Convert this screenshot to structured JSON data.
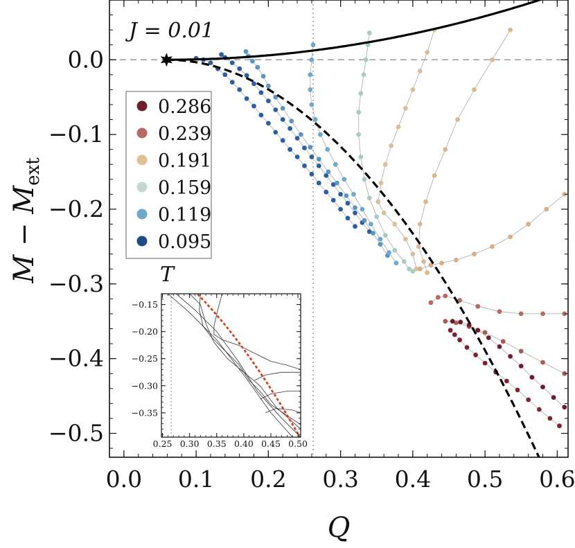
{
  "chart_data": {
    "type": "scatter",
    "title": "",
    "annotation": "J = 0.01",
    "xlabel": "Q",
    "ylabel": "M − M_ext",
    "xlim": [
      -0.02,
      0.615
    ],
    "ylim": [
      -0.532,
      0.08
    ],
    "xticks": [
      0.0,
      0.1,
      0.2,
      0.3,
      0.4,
      0.5,
      0.6
    ],
    "xtick_labels": [
      "0.0",
      "0.1",
      "0.2",
      "0.3",
      "0.4",
      "0.5",
      "0.6"
    ],
    "yticks": [
      0.0,
      -0.1,
      -0.2,
      -0.3,
      -0.4,
      -0.5
    ],
    "ytick_labels": [
      "0.0",
      "−0.1",
      "−0.2",
      "−0.3",
      "−0.4",
      "−0.5"
    ],
    "reference_lines": {
      "vertical_q": 0.262,
      "horizontal_m": 0.0
    },
    "extremal_point": {
      "q": 0.059,
      "m": 0.0
    },
    "upper_boundary": {
      "q0": 0.059,
      "coef": 0.3
    },
    "lower_boundary": {
      "q0": 0.059,
      "coef": -2.0
    },
    "legend": {
      "title": "T",
      "entries": [
        {
          "label": "0.286",
          "color": "#6e1f2c"
        },
        {
          "label": "0.239",
          "color": "#b76a62"
        },
        {
          "label": "0.191",
          "color": "#dfc195"
        },
        {
          "label": "0.159",
          "color": "#c2d9d2"
        },
        {
          "label": "0.119",
          "color": "#6ea8cc"
        },
        {
          "label": "0.095",
          "color": "#1f4a8a"
        }
      ]
    },
    "series": [
      {
        "name": "T=0.095",
        "color": "#2b5fa0",
        "points": [
          [
            0.1,
            0.002
          ],
          [
            0.11,
            0.0
          ],
          [
            0.12,
            -0.004
          ],
          [
            0.13,
            -0.012
          ],
          [
            0.14,
            -0.02
          ],
          [
            0.15,
            -0.03
          ],
          [
            0.16,
            -0.04
          ],
          [
            0.17,
            -0.052
          ],
          [
            0.18,
            -0.062
          ],
          [
            0.19,
            -0.074
          ],
          [
            0.2,
            -0.085
          ],
          [
            0.21,
            -0.097
          ],
          [
            0.22,
            -0.108
          ],
          [
            0.23,
            -0.12
          ],
          [
            0.24,
            -0.13
          ],
          [
            0.25,
            -0.142
          ],
          [
            0.26,
            -0.153
          ],
          [
            0.27,
            -0.165
          ],
          [
            0.28,
            -0.177
          ],
          [
            0.29,
            -0.188
          ],
          [
            0.3,
            -0.2
          ],
          [
            0.31,
            -0.212
          ],
          [
            0.32,
            -0.223
          ]
        ]
      },
      {
        "name": "T=0.095 (b)",
        "color": "#2b5fa0",
        "points": [
          [
            0.135,
            0.007
          ],
          [
            0.14,
            0.003
          ],
          [
            0.15,
            -0.004
          ],
          [
            0.16,
            -0.012
          ],
          [
            0.17,
            -0.021
          ],
          [
            0.18,
            -0.032
          ],
          [
            0.19,
            -0.044
          ],
          [
            0.2,
            -0.055
          ],
          [
            0.21,
            -0.067
          ],
          [
            0.22,
            -0.08
          ],
          [
            0.23,
            -0.092
          ],
          [
            0.24,
            -0.105
          ],
          [
            0.25,
            -0.118
          ],
          [
            0.26,
            -0.13
          ],
          [
            0.27,
            -0.142
          ],
          [
            0.28,
            -0.155
          ],
          [
            0.29,
            -0.167
          ],
          [
            0.3,
            -0.18
          ],
          [
            0.31,
            -0.192
          ],
          [
            0.32,
            -0.205
          ],
          [
            0.33,
            -0.218
          ],
          [
            0.34,
            -0.23
          ]
        ]
      },
      {
        "name": "T=0.119",
        "color": "#5b95c2",
        "points": [
          [
            0.169,
            0.011
          ],
          [
            0.172,
            0.005
          ],
          [
            0.178,
            -0.002
          ],
          [
            0.185,
            -0.01
          ],
          [
            0.193,
            -0.022
          ],
          [
            0.2,
            -0.035
          ],
          [
            0.21,
            -0.05
          ],
          [
            0.22,
            -0.065
          ],
          [
            0.232,
            -0.082
          ],
          [
            0.245,
            -0.1
          ],
          [
            0.258,
            -0.117
          ],
          [
            0.27,
            -0.133
          ],
          [
            0.283,
            -0.15
          ],
          [
            0.295,
            -0.165
          ],
          [
            0.308,
            -0.182
          ],
          [
            0.32,
            -0.198
          ],
          [
            0.333,
            -0.215
          ],
          [
            0.345,
            -0.232
          ],
          [
            0.355,
            -0.247
          ],
          [
            0.365,
            -0.262
          ]
        ]
      },
      {
        "name": "T=0.119 (b)",
        "color": "#6ea8cc",
        "points": [
          [
            0.262,
            0.02
          ],
          [
            0.26,
            0.0
          ],
          [
            0.258,
            -0.02
          ],
          [
            0.258,
            -0.04
          ],
          [
            0.26,
            -0.06
          ],
          [
            0.265,
            -0.08
          ],
          [
            0.272,
            -0.1
          ],
          [
            0.282,
            -0.12
          ],
          [
            0.293,
            -0.14
          ],
          [
            0.305,
            -0.16
          ],
          [
            0.318,
            -0.18
          ],
          [
            0.33,
            -0.2
          ],
          [
            0.342,
            -0.22
          ],
          [
            0.355,
            -0.24
          ],
          [
            0.367,
            -0.258
          ],
          [
            0.377,
            -0.272
          ]
        ]
      },
      {
        "name": "T=0.159",
        "color": "#a9cbc8",
        "points": [
          [
            0.34,
            0.036
          ],
          [
            0.338,
            0.02
          ],
          [
            0.335,
            0.0
          ],
          [
            0.332,
            -0.02
          ],
          [
            0.328,
            -0.045
          ],
          [
            0.325,
            -0.07
          ],
          [
            0.325,
            -0.1
          ],
          [
            0.328,
            -0.13
          ],
          [
            0.333,
            -0.16
          ],
          [
            0.34,
            -0.185
          ],
          [
            0.35,
            -0.21
          ],
          [
            0.362,
            -0.235
          ],
          [
            0.375,
            -0.255
          ],
          [
            0.388,
            -0.27
          ],
          [
            0.395,
            -0.28
          ],
          [
            0.4,
            -0.283
          ]
        ]
      },
      {
        "name": "T=0.191 (a)",
        "color": "#d7c09a",
        "points": [
          [
            0.43,
            0.04
          ],
          [
            0.42,
            0.01
          ],
          [
            0.41,
            -0.015
          ],
          [
            0.4,
            -0.04
          ],
          [
            0.39,
            -0.065
          ],
          [
            0.38,
            -0.09
          ],
          [
            0.37,
            -0.115
          ],
          [
            0.362,
            -0.14
          ],
          [
            0.356,
            -0.165
          ],
          [
            0.352,
            -0.19
          ],
          [
            0.36,
            -0.205
          ],
          [
            0.375,
            -0.22
          ],
          [
            0.39,
            -0.24
          ],
          [
            0.4,
            -0.26
          ],
          [
            0.405,
            -0.28
          ]
        ]
      },
      {
        "name": "T=0.191 (b)",
        "color": "#dcb890",
        "points": [
          [
            0.535,
            0.04
          ],
          [
            0.51,
            0.0
          ],
          [
            0.485,
            -0.04
          ],
          [
            0.462,
            -0.08
          ],
          [
            0.445,
            -0.12
          ],
          [
            0.43,
            -0.155
          ],
          [
            0.418,
            -0.19
          ],
          [
            0.41,
            -0.22
          ],
          [
            0.408,
            -0.25
          ],
          [
            0.415,
            -0.27
          ],
          [
            0.42,
            -0.285
          ]
        ]
      },
      {
        "name": "T=0.191 (c)",
        "color": "#d9ad85",
        "points": [
          [
            0.61,
            -0.18
          ],
          [
            0.585,
            -0.2
          ],
          [
            0.56,
            -0.22
          ],
          [
            0.535,
            -0.237
          ],
          [
            0.51,
            -0.25
          ],
          [
            0.485,
            -0.26
          ],
          [
            0.46,
            -0.268
          ],
          [
            0.44,
            -0.272
          ],
          [
            0.425,
            -0.275
          ],
          [
            0.41,
            -0.28
          ]
        ]
      },
      {
        "name": "T=0.239",
        "color": "#b76a62",
        "points": [
          [
            0.61,
            -0.34
          ],
          [
            0.58,
            -0.34
          ],
          [
            0.55,
            -0.34
          ],
          [
            0.52,
            -0.337
          ],
          [
            0.49,
            -0.33
          ],
          [
            0.465,
            -0.322
          ],
          [
            0.445,
            -0.316
          ],
          [
            0.435,
            -0.318
          ],
          [
            0.425,
            -0.325
          ]
        ]
      },
      {
        "name": "T=0.239 (b)",
        "color": "#a85a55",
        "points": [
          [
            0.61,
            -0.42
          ],
          [
            0.58,
            -0.405
          ],
          [
            0.55,
            -0.39
          ],
          [
            0.525,
            -0.377
          ],
          [
            0.5,
            -0.365
          ],
          [
            0.478,
            -0.357
          ],
          [
            0.46,
            -0.352
          ],
          [
            0.445,
            -0.35
          ]
        ]
      },
      {
        "name": "T=0.286",
        "color": "#7a2530",
        "points": [
          [
            0.603,
            -0.49
          ],
          [
            0.59,
            -0.48
          ],
          [
            0.575,
            -0.468
          ],
          [
            0.56,
            -0.455
          ],
          [
            0.545,
            -0.442
          ],
          [
            0.53,
            -0.43
          ],
          [
            0.515,
            -0.418
          ],
          [
            0.5,
            -0.406
          ],
          [
            0.487,
            -0.395
          ],
          [
            0.475,
            -0.385
          ],
          [
            0.465,
            -0.375
          ],
          [
            0.458,
            -0.368
          ],
          [
            0.452,
            -0.362
          ]
        ]
      },
      {
        "name": "T=0.286 (b)",
        "color": "#6e1f2c",
        "points": [
          [
            0.61,
            -0.465
          ],
          [
            0.595,
            -0.452
          ],
          [
            0.58,
            -0.438
          ],
          [
            0.565,
            -0.425
          ],
          [
            0.55,
            -0.41
          ],
          [
            0.535,
            -0.397
          ],
          [
            0.52,
            -0.384
          ],
          [
            0.505,
            -0.372
          ],
          [
            0.49,
            -0.362
          ],
          [
            0.478,
            -0.355
          ],
          [
            0.466,
            -0.351
          ],
          [
            0.455,
            -0.35
          ]
        ]
      }
    ],
    "inset": {
      "xlim": [
        0.248,
        0.505
      ],
      "ylim": [
        -0.395,
        -0.13
      ],
      "xticks": [
        0.25,
        0.3,
        0.35,
        0.4,
        0.45,
        0.5
      ],
      "xtick_labels": [
        "0.25",
        "0.30",
        "0.35",
        "0.40",
        "0.45",
        "0.50"
      ],
      "yticks": [
        -0.15,
        -0.2,
        -0.25,
        -0.3,
        -0.35
      ],
      "ytick_labels": [
        "−0.15",
        "−0.20",
        "−0.25",
        "−0.30",
        "−0.35"
      ],
      "vertical_q": 0.266,
      "boundary_color": "#d0431c",
      "curves": [
        [
          [
            0.26,
            -0.13
          ],
          [
            0.3,
            -0.165
          ],
          [
            0.35,
            -0.215
          ],
          [
            0.4,
            -0.28
          ],
          [
            0.45,
            -0.35
          ],
          [
            0.49,
            -0.395
          ]
        ],
        [
          [
            0.275,
            -0.13
          ],
          [
            0.31,
            -0.16
          ],
          [
            0.35,
            -0.2
          ],
          [
            0.39,
            -0.255
          ],
          [
            0.425,
            -0.31
          ],
          [
            0.47,
            -0.36
          ],
          [
            0.505,
            -0.395
          ]
        ],
        [
          [
            0.3,
            -0.13
          ],
          [
            0.32,
            -0.15
          ],
          [
            0.33,
            -0.185
          ],
          [
            0.345,
            -0.22
          ],
          [
            0.37,
            -0.25
          ],
          [
            0.4,
            -0.275
          ],
          [
            0.43,
            -0.3
          ],
          [
            0.46,
            -0.34
          ],
          [
            0.505,
            -0.38
          ]
        ],
        [
          [
            0.32,
            -0.13
          ],
          [
            0.318,
            -0.16
          ],
          [
            0.325,
            -0.19
          ],
          [
            0.34,
            -0.21
          ],
          [
            0.36,
            -0.23
          ],
          [
            0.39,
            -0.26
          ],
          [
            0.41,
            -0.29
          ],
          [
            0.43,
            -0.31
          ],
          [
            0.45,
            -0.335
          ],
          [
            0.48,
            -0.355
          ],
          [
            0.505,
            -0.372
          ]
        ],
        [
          [
            0.36,
            -0.13
          ],
          [
            0.352,
            -0.16
          ],
          [
            0.345,
            -0.19
          ],
          [
            0.345,
            -0.205
          ],
          [
            0.36,
            -0.215
          ],
          [
            0.39,
            -0.225
          ],
          [
            0.42,
            -0.24
          ],
          [
            0.45,
            -0.255
          ],
          [
            0.48,
            -0.262
          ],
          [
            0.505,
            -0.27
          ]
        ],
        [
          [
            0.42,
            -0.29
          ],
          [
            0.44,
            -0.28
          ],
          [
            0.47,
            -0.275
          ],
          [
            0.505,
            -0.275
          ]
        ],
        [
          [
            0.43,
            -0.325
          ],
          [
            0.45,
            -0.315
          ],
          [
            0.48,
            -0.31
          ],
          [
            0.505,
            -0.31
          ]
        ],
        [
          [
            0.44,
            -0.35
          ],
          [
            0.46,
            -0.342
          ],
          [
            0.49,
            -0.345
          ],
          [
            0.505,
            -0.35
          ]
        ]
      ]
    }
  }
}
